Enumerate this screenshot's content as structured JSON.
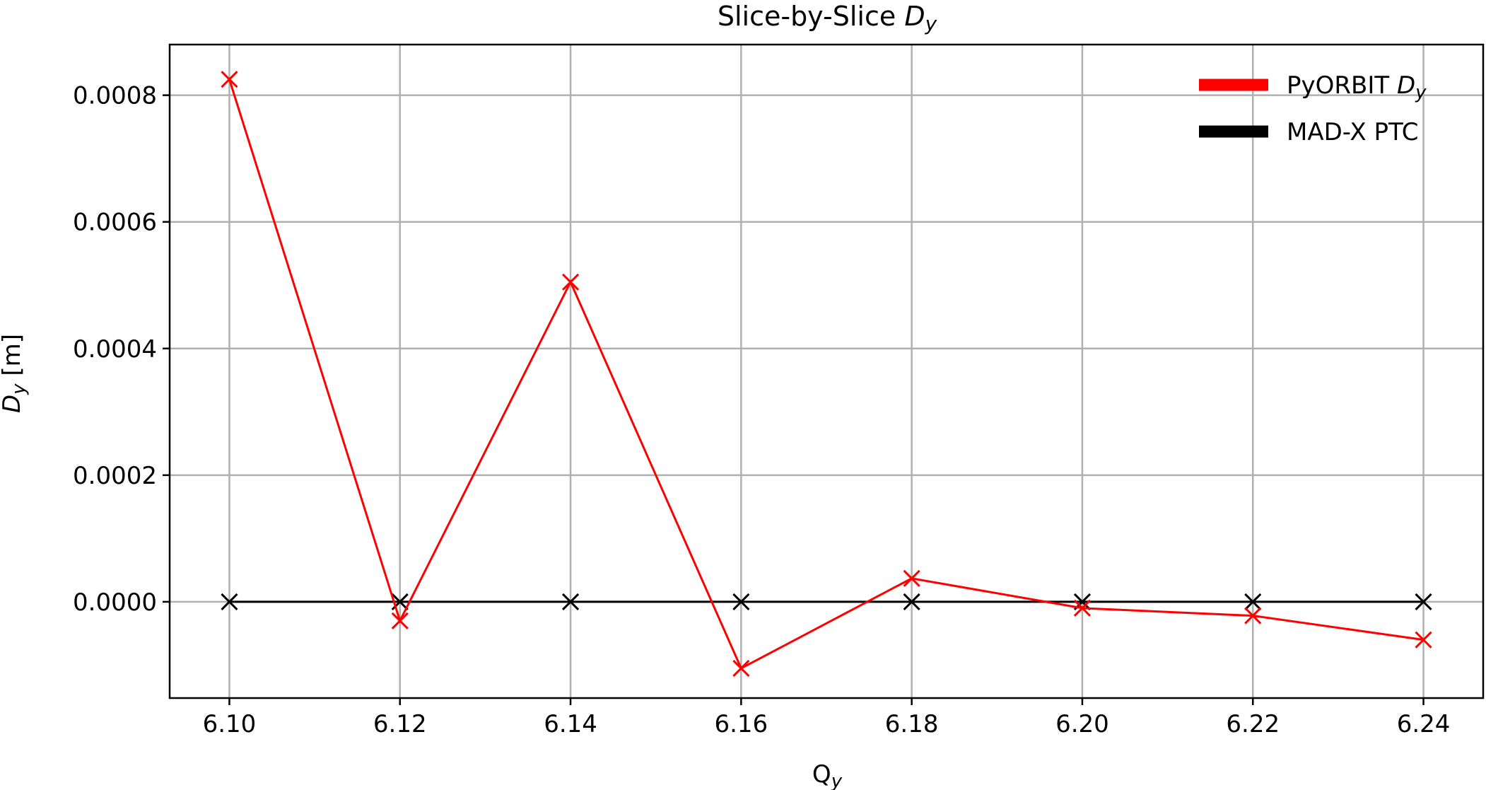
{
  "chart_data": {
    "type": "line",
    "title": {
      "text": "Slice-by-Slice ",
      "symbol": "D",
      "subscript": "y"
    },
    "xlabel": {
      "text": "Q",
      "subscript": "y"
    },
    "ylabel": {
      "symbol": "D",
      "subscript": "y",
      "unit": " [m]"
    },
    "x": [
      6.1,
      6.12,
      6.14,
      6.16,
      6.18,
      6.2,
      6.22,
      6.24
    ],
    "xlim": [
      6.093,
      6.247
    ],
    "ylim": [
      -0.000152,
      0.00088
    ],
    "xticks": [
      "6.10",
      "6.12",
      "6.14",
      "6.16",
      "6.18",
      "6.20",
      "6.22",
      "6.24"
    ],
    "xtick_values": [
      6.1,
      6.12,
      6.14,
      6.16,
      6.18,
      6.2,
      6.22,
      6.24
    ],
    "yticks": [
      "0.0000",
      "0.0002",
      "0.0004",
      "0.0006",
      "0.0008"
    ],
    "ytick_values": [
      0.0,
      0.0002,
      0.0004,
      0.0006,
      0.0008
    ],
    "grid": true,
    "legend_position": "top-right",
    "series": [
      {
        "name": "PyORBIT ",
        "name_symbol": "D",
        "name_subscript": "y",
        "color": "#ff0000",
        "marker": "x",
        "values": [
          0.000825,
          -3e-05,
          0.000505,
          -0.000105,
          3.7e-05,
          -1e-05,
          -2.2e-05,
          -6e-05
        ]
      },
      {
        "name": "MAD-X PTC",
        "color": "#000000",
        "marker": "x",
        "values": [
          0.0,
          0.0,
          0.0,
          0.0,
          0.0,
          0.0,
          0.0,
          0.0
        ]
      }
    ]
  }
}
